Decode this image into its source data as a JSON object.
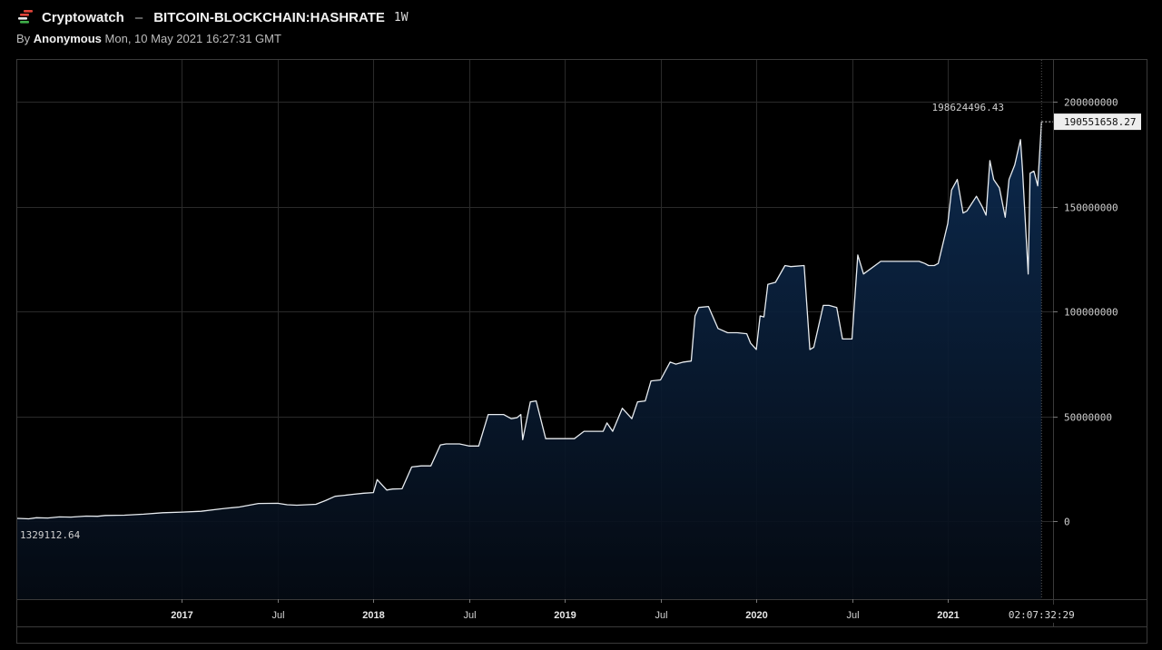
{
  "header": {
    "app_name": "Cryptowatch",
    "separator": "–",
    "symbol": "BITCOIN-BLOCKCHAIN:HASHRATE",
    "interval": "1W",
    "byline_prefix": "By",
    "author": "Anonymous",
    "timestamp": "Mon, 10 May 2021 16:27:31 GMT"
  },
  "colors": {
    "background": "#000000",
    "line": "#e8ecf0",
    "area_top": "#0d2c52",
    "area_bottom": "#050b14",
    "grid": "#2a2a2a",
    "text": "#d0d0d0",
    "logo_red": "#e0443a",
    "logo_white": "#e8e8e8",
    "logo_green": "#3fae49"
  },
  "chart_data": {
    "type": "area",
    "title": "",
    "xlabel": "",
    "ylabel": "",
    "ylim": [
      -37000000,
      220000000
    ],
    "xlim": [
      2016.14,
      2021.55
    ],
    "x_ticks": [
      {
        "value": 2017.0,
        "label": "2017",
        "bold": true
      },
      {
        "value": 2017.5,
        "label": "Jul",
        "bold": false
      },
      {
        "value": 2018.0,
        "label": "2018",
        "bold": true
      },
      {
        "value": 2018.5,
        "label": "Jul",
        "bold": false
      },
      {
        "value": 2019.0,
        "label": "2019",
        "bold": true
      },
      {
        "value": 2019.5,
        "label": "Jul",
        "bold": false
      },
      {
        "value": 2020.0,
        "label": "2020",
        "bold": true
      },
      {
        "value": 2020.5,
        "label": "Jul",
        "bold": false
      },
      {
        "value": 2021.0,
        "label": "2021",
        "bold": true
      }
    ],
    "y_ticks": [
      {
        "value": 200000000,
        "label": "200000000"
      },
      {
        "value": 150000000,
        "label": "150000000"
      },
      {
        "value": 100000000,
        "label": "100000000"
      },
      {
        "value": 50000000,
        "label": "50000000"
      },
      {
        "value": 0,
        "label": "0"
      }
    ],
    "crosshair_time_label": "02:07:32:29",
    "high_label": "198624496.43",
    "low_label": "1329112.64",
    "last_value_label": "190551658.27",
    "last_value": 190551658.27,
    "series": [
      {
        "x": [
          2016.14,
          2016.2,
          2016.24,
          2016.3,
          2016.36,
          2016.42,
          2016.5,
          2016.56,
          2016.6,
          2016.7,
          2016.8,
          2016.9,
          2017.0,
          2017.1,
          2017.2,
          2017.25,
          2017.3,
          2017.4,
          2017.5,
          2017.55,
          2017.6,
          2017.7,
          2017.75,
          2017.8,
          2017.85,
          2017.9,
          2017.95,
          2018.0,
          2018.02,
          2018.07,
          2018.1,
          2018.15,
          2018.2,
          2018.25,
          2018.3,
          2018.35,
          2018.38,
          2018.45,
          2018.5,
          2018.55,
          2018.6,
          2018.65,
          2018.68,
          2018.72,
          2018.75,
          2018.77,
          2018.78,
          2018.82,
          2018.85,
          2018.9,
          2018.95,
          2019.0,
          2019.05,
          2019.1,
          2019.15,
          2019.2,
          2019.22,
          2019.25,
          2019.3,
          2019.35,
          2019.38,
          2019.42,
          2019.45,
          2019.5,
          2019.55,
          2019.58,
          2019.62,
          2019.66,
          2019.68,
          2019.7,
          2019.75,
          2019.8,
          2019.85,
          2019.9,
          2019.95,
          2019.97,
          2020.0,
          2020.02,
          2020.04,
          2020.06,
          2020.1,
          2020.15,
          2020.18,
          2020.25,
          2020.28,
          2020.3,
          2020.35,
          2020.38,
          2020.42,
          2020.45,
          2020.5,
          2020.53,
          2020.56,
          2020.65,
          2020.75,
          2020.85,
          2020.88,
          2020.9,
          2020.93,
          2020.95,
          2021.0,
          2021.02,
          2021.05,
          2021.08,
          2021.1,
          2021.15,
          2021.18,
          2021.2,
          2021.22,
          2021.24,
          2021.27,
          2021.3,
          2021.32,
          2021.35,
          2021.38,
          2021.39,
          2021.42,
          2021.43,
          2021.45,
          2021.47,
          2021.49
        ],
        "y": [
          1500000,
          1300000,
          1800000,
          1700000,
          2200000,
          2100000,
          2600000,
          2500000,
          2900000,
          3000000,
          3500000,
          4200000,
          4500000,
          4900000,
          6000000,
          6500000,
          6900000,
          8600000,
          8700000,
          8000000,
          7800000,
          8200000,
          10000000,
          12000000,
          12500000,
          13000000,
          13500000,
          13800000,
          20000000,
          15000000,
          15500000,
          15600000,
          26000000,
          26500000,
          26500000,
          36500000,
          37000000,
          37000000,
          36000000,
          36000000,
          51000000,
          51000000,
          51000000,
          49000000,
          49500000,
          51000000,
          39000000,
          57000000,
          57500000,
          39500000,
          39500000,
          39500000,
          39500000,
          43000000,
          43000000,
          43000000,
          47000000,
          43000000,
          54000000,
          49000000,
          57000000,
          57500000,
          67000000,
          67500000,
          76000000,
          75000000,
          76000000,
          76500000,
          98000000,
          102000000,
          102500000,
          92000000,
          90000000,
          90000000,
          89500000,
          85000000,
          82000000,
          98000000,
          97500000,
          113000000,
          114000000,
          122000000,
          121500000,
          122000000,
          82000000,
          83000000,
          103000000,
          103000000,
          102000000,
          87000000,
          87000000,
          127000000,
          118000000,
          124000000,
          124000000,
          124000000,
          123000000,
          122000000,
          122000000,
          123000000,
          142000000,
          158000000,
          163000000,
          147000000,
          148000000,
          155000000,
          150000000,
          146000000,
          172000000,
          163000000,
          159000000,
          145000000,
          163000000,
          170000000,
          182000000,
          168000000,
          118000000,
          166000000,
          167000000,
          160000000,
          190551658.27
        ]
      }
    ]
  }
}
